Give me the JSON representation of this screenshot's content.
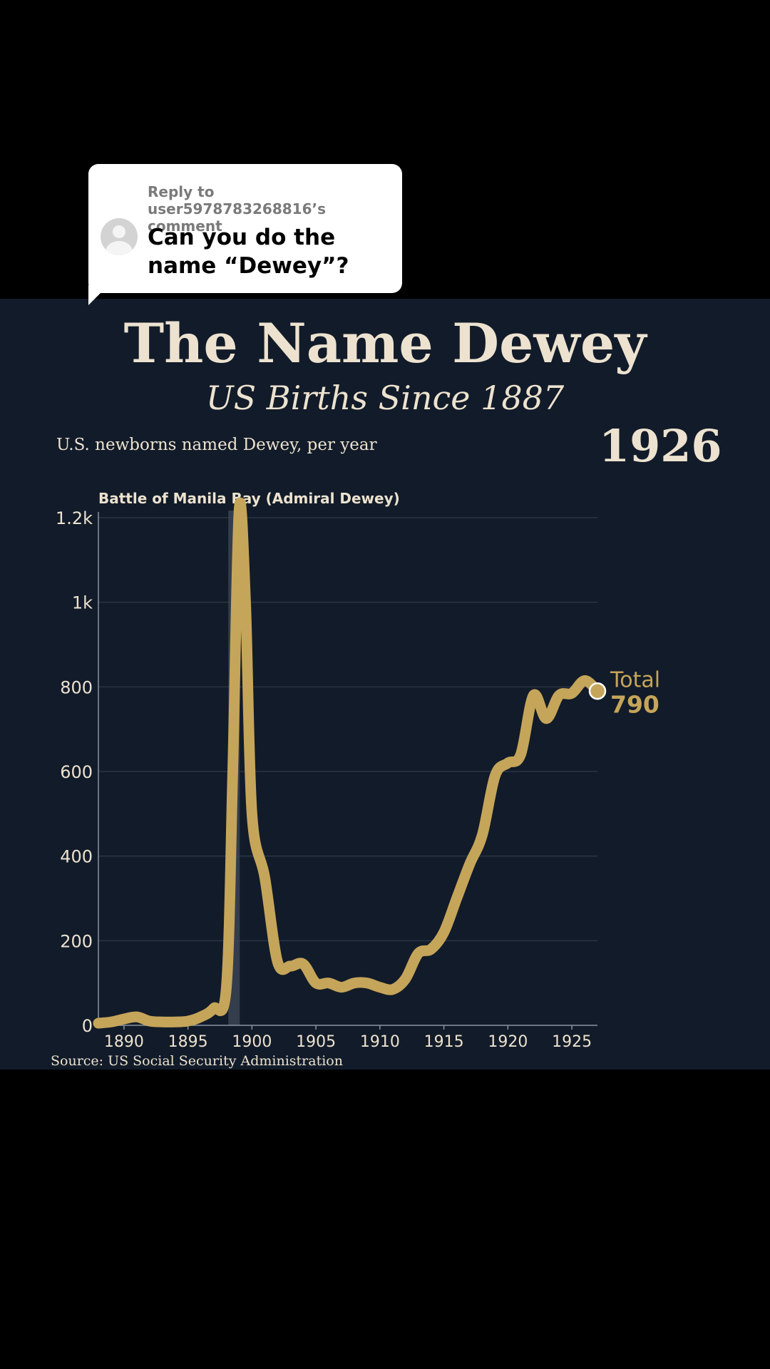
{
  "comment": {
    "reply_label": "Reply to user5978783268816’s comment",
    "text": "Can you do the name “Dewey”?"
  },
  "header": {
    "title": "The Name Dewey",
    "subtitle": "US Births Since 1887",
    "description": "U.S. newborns named Dewey, per year",
    "current_year": "1926"
  },
  "source": "Source: US Social Security Administration",
  "colors": {
    "background": "#121b29",
    "line": "#c5a55a",
    "text": "#ece2cf"
  },
  "chart_data": {
    "type": "line",
    "x": [
      1888,
      1889,
      1890,
      1891,
      1892,
      1893,
      1894,
      1895,
      1896,
      1897,
      1898,
      1898.5,
      1899,
      1899.5,
      1900,
      1901,
      1902,
      1903,
      1904,
      1905,
      1906,
      1907,
      1908,
      1909,
      1910,
      1911,
      1912,
      1913,
      1914,
      1915,
      1916,
      1917,
      1918,
      1919,
      1920,
      1921,
      1922,
      1923,
      1924,
      1925,
      1926,
      1927
    ],
    "values": [
      5,
      8,
      15,
      20,
      10,
      8,
      8,
      10,
      20,
      40,
      90,
      600,
      1220,
      1000,
      500,
      350,
      150,
      140,
      145,
      100,
      100,
      90,
      100,
      100,
      90,
      85,
      110,
      170,
      180,
      220,
      300,
      380,
      450,
      590,
      620,
      640,
      780,
      725,
      780,
      785,
      815,
      790
    ],
    "xlim": [
      1888,
      1927
    ],
    "ylim": [
      0,
      1200
    ],
    "x_ticks": [
      1890,
      1895,
      1900,
      1905,
      1910,
      1915,
      1920,
      1925
    ],
    "y_ticks": [
      0,
      200,
      400,
      600,
      800,
      1000,
      1200
    ],
    "y_tick_labels": [
      "0",
      "200",
      "400",
      "600",
      "800",
      "1k",
      "1.2k"
    ],
    "grid": true,
    "annotation": {
      "label": "Battle of Manila Bay (Admiral Dewey)",
      "x": 1898.6
    },
    "end_label": {
      "title": "Total",
      "value": "790"
    }
  }
}
